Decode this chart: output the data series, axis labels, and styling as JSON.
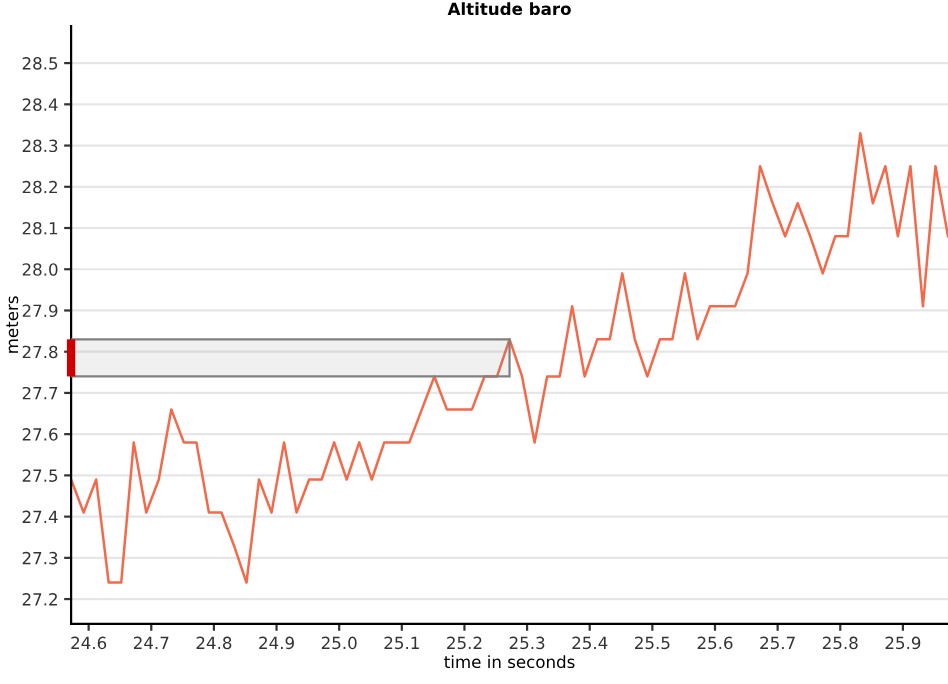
{
  "chart_data": {
    "type": "line",
    "title": "Altitude baro",
    "xlabel": "time in seconds",
    "ylabel": "meters",
    "x": [
      24.572,
      24.592,
      24.612,
      24.632,
      24.652,
      24.672,
      24.692,
      24.712,
      24.732,
      24.752,
      24.772,
      24.792,
      24.812,
      24.832,
      24.852,
      24.872,
      24.892,
      24.912,
      24.932,
      24.952,
      24.972,
      24.992,
      25.012,
      25.032,
      25.052,
      25.072,
      25.092,
      25.112,
      25.132,
      25.152,
      25.172,
      25.192,
      25.212,
      25.232,
      25.252,
      25.272,
      25.292,
      25.312,
      25.332,
      25.352,
      25.372,
      25.392,
      25.412,
      25.432,
      25.452,
      25.472,
      25.492,
      25.512,
      25.532,
      25.552,
      25.572,
      25.592,
      25.612,
      25.632,
      25.652,
      25.672,
      25.692,
      25.712,
      25.732,
      25.752,
      25.772,
      25.792,
      25.812,
      25.832,
      25.852,
      25.872,
      25.892,
      25.912,
      25.932,
      25.952,
      25.972
    ],
    "series": [
      {
        "color": "#f4694a",
        "values": [
          27.49,
          27.41,
          27.49,
          27.24,
          27.24,
          27.58,
          27.41,
          27.49,
          27.66,
          27.58,
          27.58,
          27.41,
          27.41,
          27.33,
          27.24,
          27.49,
          27.41,
          27.58,
          27.41,
          27.49,
          27.49,
          27.58,
          27.49,
          27.58,
          27.49,
          27.58,
          27.58,
          27.58,
          27.66,
          27.74,
          27.66,
          27.66,
          27.66,
          27.74,
          27.74,
          27.83,
          27.74,
          27.58,
          27.74,
          27.74,
          27.91,
          27.74,
          27.83,
          27.83,
          27.99,
          27.83,
          27.74,
          27.83,
          27.83,
          27.99,
          27.83,
          27.91,
          27.91,
          27.91,
          27.99,
          28.25,
          28.16,
          28.08,
          28.16,
          28.08,
          27.99,
          28.08,
          28.08,
          28.33,
          28.16,
          28.25,
          28.08,
          28.25,
          27.91,
          28.25,
          28.08
        ]
      }
    ],
    "xlim": [
      24.572,
      25.972
    ],
    "ylim": [
      27.14,
      28.59
    ],
    "xticks": [
      24.6,
      24.7,
      24.8,
      24.9,
      {
        "value": 25,
        "label": "25.0"
      },
      25.1,
      25.2,
      25.3,
      25.4,
      25.5,
      25.6,
      25.7,
      25.8,
      25.9
    ],
    "yticks": [
      27.2,
      27.3,
      27.4,
      27.5,
      27.6,
      27.7,
      27.8,
      27.9,
      {
        "value": 28,
        "label": "28.0"
      },
      28.1,
      28.2,
      28.3,
      28.4,
      28.5
    ],
    "bands": [
      {
        "axis": "y",
        "from": 27.74,
        "to": 27.83,
        "color": "#808080"
      }
    ],
    "grid": "y",
    "legend": false,
    "marker": "none",
    "line_style": "solid"
  }
}
